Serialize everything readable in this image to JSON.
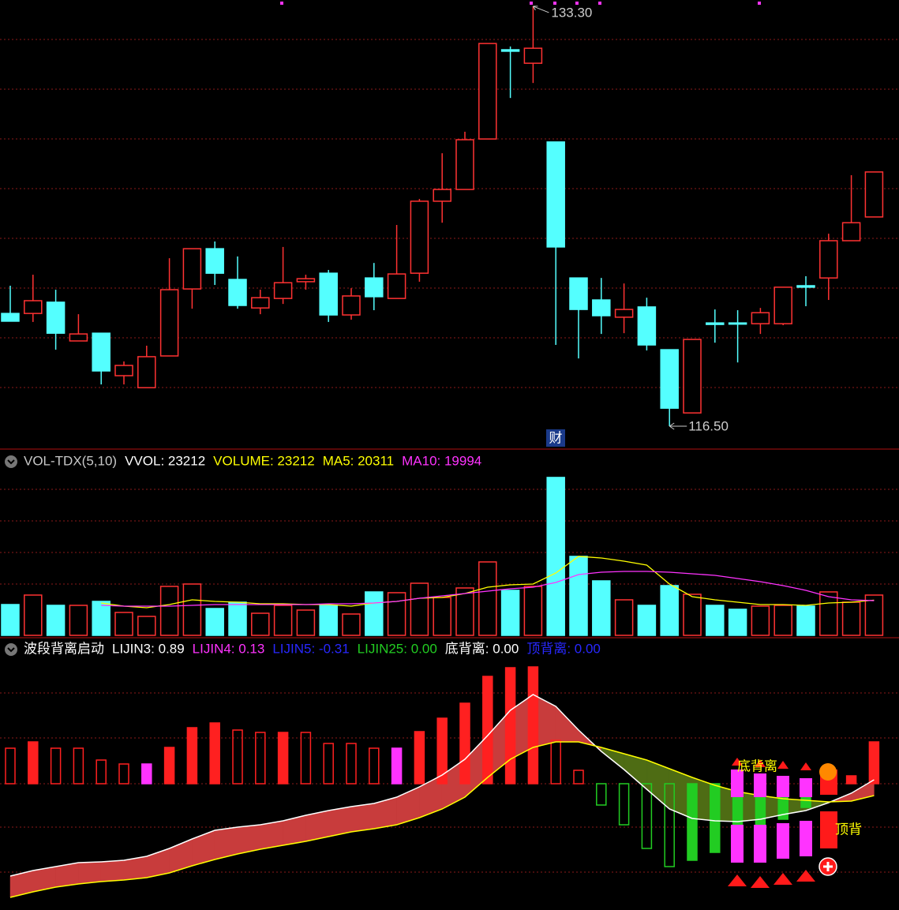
{
  "chart_data": [
    {
      "type": "candlestick",
      "ylim": [
        115.71,
        133.55
      ],
      "up_color": "#ff3232",
      "down_color": "#54ffff",
      "open": [
        121.01,
        121.01,
        121.46,
        119.91,
        120.22,
        118.52,
        118.04,
        119.31,
        121.99,
        123.6,
        122.37,
        121.23,
        121.61,
        122.28,
        122.62,
        120.95,
        122.43,
        121.61,
        122.62,
        125.5,
        125.97,
        127.99,
        131.56,
        131.02,
        127.87,
        122.43,
        121.55,
        120.86,
        121.27,
        119.56,
        117.03,
        120.63,
        120.63,
        120.6,
        120.6,
        122.12,
        122.43,
        123.92,
        124.87
      ],
      "high": [
        122.12,
        122.56,
        121.96,
        120.98,
        120.22,
        119.09,
        119.72,
        123.22,
        123.6,
        123.89,
        123.29,
        121.96,
        123.67,
        122.56,
        122.75,
        122.02,
        123.03,
        124.55,
        125.59,
        127.42,
        128.28,
        131.81,
        131.69,
        133.3,
        127.87,
        122.43,
        122.43,
        122.21,
        121.64,
        119.56,
        119.97,
        121.17,
        121.14,
        121.23,
        122.06,
        122.5,
        124.2,
        126.54,
        126.67
      ],
      "low": [
        120.7,
        120.67,
        119.56,
        119.91,
        118.17,
        118.17,
        118.04,
        119.31,
        121.2,
        122.15,
        121.2,
        120.98,
        121.39,
        121.96,
        120.67,
        120.76,
        121.14,
        121.61,
        122.28,
        124.64,
        125.97,
        127.99,
        129.63,
        130.23,
        119.75,
        119.21,
        120.19,
        120.22,
        119.53,
        116.5,
        117.03,
        119.84,
        119.05,
        120.19,
        120.54,
        121.3,
        121.55,
        123.92,
        124.87
      ],
      "close": [
        120.7,
        121.52,
        120.22,
        120.19,
        118.71,
        118.93,
        119.28,
        121.96,
        123.6,
        122.62,
        121.33,
        121.64,
        122.24,
        122.4,
        120.95,
        121.71,
        121.68,
        122.59,
        125.5,
        125.97,
        127.96,
        131.81,
        131.5,
        131.62,
        123.67,
        121.17,
        120.92,
        121.17,
        119.75,
        117.22,
        119.97,
        120.57,
        120.6,
        121.04,
        122.06,
        122.06,
        123.92,
        124.64,
        126.67
      ],
      "max_label": {
        "value": 133.3,
        "label": "133.30"
      },
      "min_label": {
        "value": 116.5,
        "label": "116.50"
      },
      "marker": "财"
    },
    {
      "type": "volume",
      "ylim": [
        0,
        106000
      ],
      "legend": [
        {
          "text": "VOL-TDX(5,10)",
          "color": "#c8c8c8"
        },
        {
          "text": "VVOL: 23212",
          "color": "#ffffff"
        },
        {
          "text": "VOLUME: 23212",
          "color": "#ffff00"
        },
        {
          "text": "MA5: 20311",
          "color": "#ffff00"
        },
        {
          "text": "MA10: 19994",
          "color": "#ff33ff"
        }
      ],
      "values": [
        17750,
        23210,
        17290,
        17290,
        19570,
        13200,
        10920,
        28220,
        29580,
        15470,
        19110,
        12740,
        17290,
        14560,
        17290,
        12290,
        25030,
        24580,
        30040,
        21840,
        27310,
        42320,
        25940,
        28220,
        91020,
        45510,
        31400,
        20480,
        17290,
        28670,
        23670,
        17290,
        15020,
        16840,
        17290,
        16840,
        25030,
        19110,
        23212
      ],
      "series": [
        {
          "color": "#ffff00",
          "values": [
            null,
            null,
            null,
            null,
            18660,
            16840,
            15930,
            17750,
            20480,
            19570,
            19110,
            18200,
            18200,
            17750,
            17750,
            16840,
            18660,
            19570,
            21390,
            21840,
            24120,
            27760,
            29120,
            29580,
            35950,
            45510,
            44590,
            42770,
            40500,
            29580,
            22300,
            20480,
            19110,
            17750,
            17750,
            17290,
            18660,
            19110,
            20311
          ]
        },
        {
          "color": "#ff33ff",
          "values": [
            null,
            null,
            null,
            null,
            17290,
            16840,
            16840,
            16840,
            17290,
            17750,
            17750,
            17750,
            17750,
            17750,
            18200,
            18200,
            18660,
            19570,
            21390,
            22750,
            24120,
            25480,
            26850,
            27760,
            30490,
            35040,
            36400,
            36860,
            36860,
            36400,
            35490,
            34580,
            32760,
            30940,
            28670,
            25940,
            22300,
            20480,
            19994
          ]
        }
      ]
    },
    {
      "type": "indicator",
      "ylim": [
        -1.6,
        1.58
      ],
      "legend": [
        {
          "text": "波段背离启动",
          "color": "#ffffff"
        },
        {
          "text": "LIJIN3: 0.89",
          "color": "#ffffff"
        },
        {
          "text": "LIJIN4: 0.13",
          "color": "#ff33ff"
        },
        {
          "text": "LIJIN5: -0.31",
          "color": "#2828ff"
        },
        {
          "text": "LIJIN25: 0.00",
          "color": "#22cc22"
        },
        {
          "text": "底背离: 0.00",
          "color": "#ffffff"
        },
        {
          "text": "顶背离: 0.00",
          "color": "#2828ff"
        }
      ],
      "values": [
        0.45,
        0.53,
        0.45,
        0.45,
        0.3,
        0.25,
        0.25,
        0.46,
        0.71,
        0.77,
        0.68,
        0.65,
        0.65,
        0.65,
        0.51,
        0.51,
        0.45,
        0.45,
        0.66,
        0.83,
        1.02,
        1.36,
        1.47,
        1.48,
        0.55,
        0.17,
        -0.27,
        -0.52,
        -0.82,
        -1.05,
        -0.97,
        -0.87,
        -0.75,
        -0.6,
        -0.45,
        -0.3,
        0.15,
        0.1,
        0.53
      ],
      "colors": [
        "#ff2020",
        "#ff2020",
        "#ff2020",
        "#ff2020",
        "#ff2020",
        "#ff2020",
        "#ff33ff",
        "#ff2020",
        "#ff2020",
        "#ff2020",
        "#ff2020",
        "#ff2020",
        "#ff2020",
        "#ff2020",
        "#ff2020",
        "#ff2020",
        "#ff2020",
        "#ff33ff",
        "#ff2020",
        "#ff2020",
        "#ff2020",
        "#ff2020",
        "#ff2020",
        "#ff2020",
        "#ff2020",
        "#ff2020",
        "#22cc22",
        "#22cc22",
        "#22cc22",
        "#22cc22",
        "#22cc22",
        "#22cc22",
        "#22cc22",
        "#22cc22",
        "#22cc22",
        "#22cc22",
        "#ff2020",
        "#ff2020",
        "#ff2020"
      ],
      "solid": [
        false,
        true,
        false,
        false,
        false,
        false,
        true,
        true,
        true,
        true,
        false,
        false,
        true,
        false,
        false,
        false,
        false,
        true,
        true,
        true,
        true,
        true,
        true,
        true,
        false,
        false,
        false,
        false,
        false,
        false,
        true,
        true,
        true,
        true,
        true,
        true,
        true,
        true,
        true
      ],
      "fast": {
        "color": "#ffffff",
        "values": [
          -1.17,
          -1.1,
          -1.05,
          -1.0,
          -0.99,
          -0.97,
          -0.92,
          -0.82,
          -0.7,
          -0.59,
          -0.55,
          -0.52,
          -0.47,
          -0.4,
          -0.34,
          -0.29,
          -0.25,
          -0.17,
          -0.04,
          0.11,
          0.31,
          0.61,
          0.93,
          1.13,
          0.98,
          0.68,
          0.41,
          0.18,
          -0.07,
          -0.32,
          -0.44,
          -0.47,
          -0.48,
          -0.45,
          -0.39,
          -0.34,
          -0.24,
          -0.12,
          0.05
        ]
      },
      "slow": {
        "color": "#ffff00",
        "values": [
          -1.44,
          -1.37,
          -1.31,
          -1.27,
          -1.24,
          -1.22,
          -1.19,
          -1.13,
          -1.04,
          -0.96,
          -0.89,
          -0.83,
          -0.78,
          -0.73,
          -0.67,
          -0.61,
          -0.57,
          -0.52,
          -0.43,
          -0.32,
          -0.17,
          0.08,
          0.31,
          0.46,
          0.53,
          0.53,
          0.46,
          0.38,
          0.3,
          0.19,
          0.08,
          -0.02,
          -0.1,
          -0.15,
          -0.19,
          -0.21,
          -0.23,
          -0.22,
          -0.15
        ]
      },
      "fill_up": "#c83c3c",
      "fill_down": "#4e6c14",
      "annotations": [
        "底背离",
        "顶背"
      ]
    }
  ]
}
